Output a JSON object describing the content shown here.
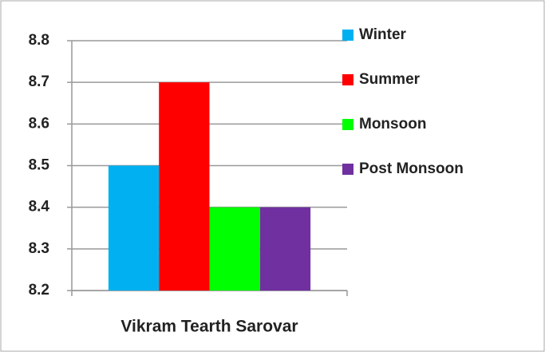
{
  "chart_data": {
    "type": "bar",
    "categories": [
      "Vikram Tearth Sarovar"
    ],
    "series": [
      {
        "name": "Winter",
        "color": "#00b0f0",
        "values": [
          8.5
        ]
      },
      {
        "name": "Summer",
        "color": "#ff0000",
        "values": [
          8.7
        ]
      },
      {
        "name": "Monsoon",
        "color": "#00ff00",
        "values": [
          8.4
        ]
      },
      {
        "name": "Post Monsoon",
        "color": "#7030a0",
        "values": [
          8.4
        ]
      }
    ],
    "ylim": [
      8.2,
      8.8
    ],
    "yticks": [
      8.2,
      8.3,
      8.4,
      8.5,
      8.6,
      8.7,
      8.8
    ],
    "grid": true,
    "legend": "right"
  }
}
